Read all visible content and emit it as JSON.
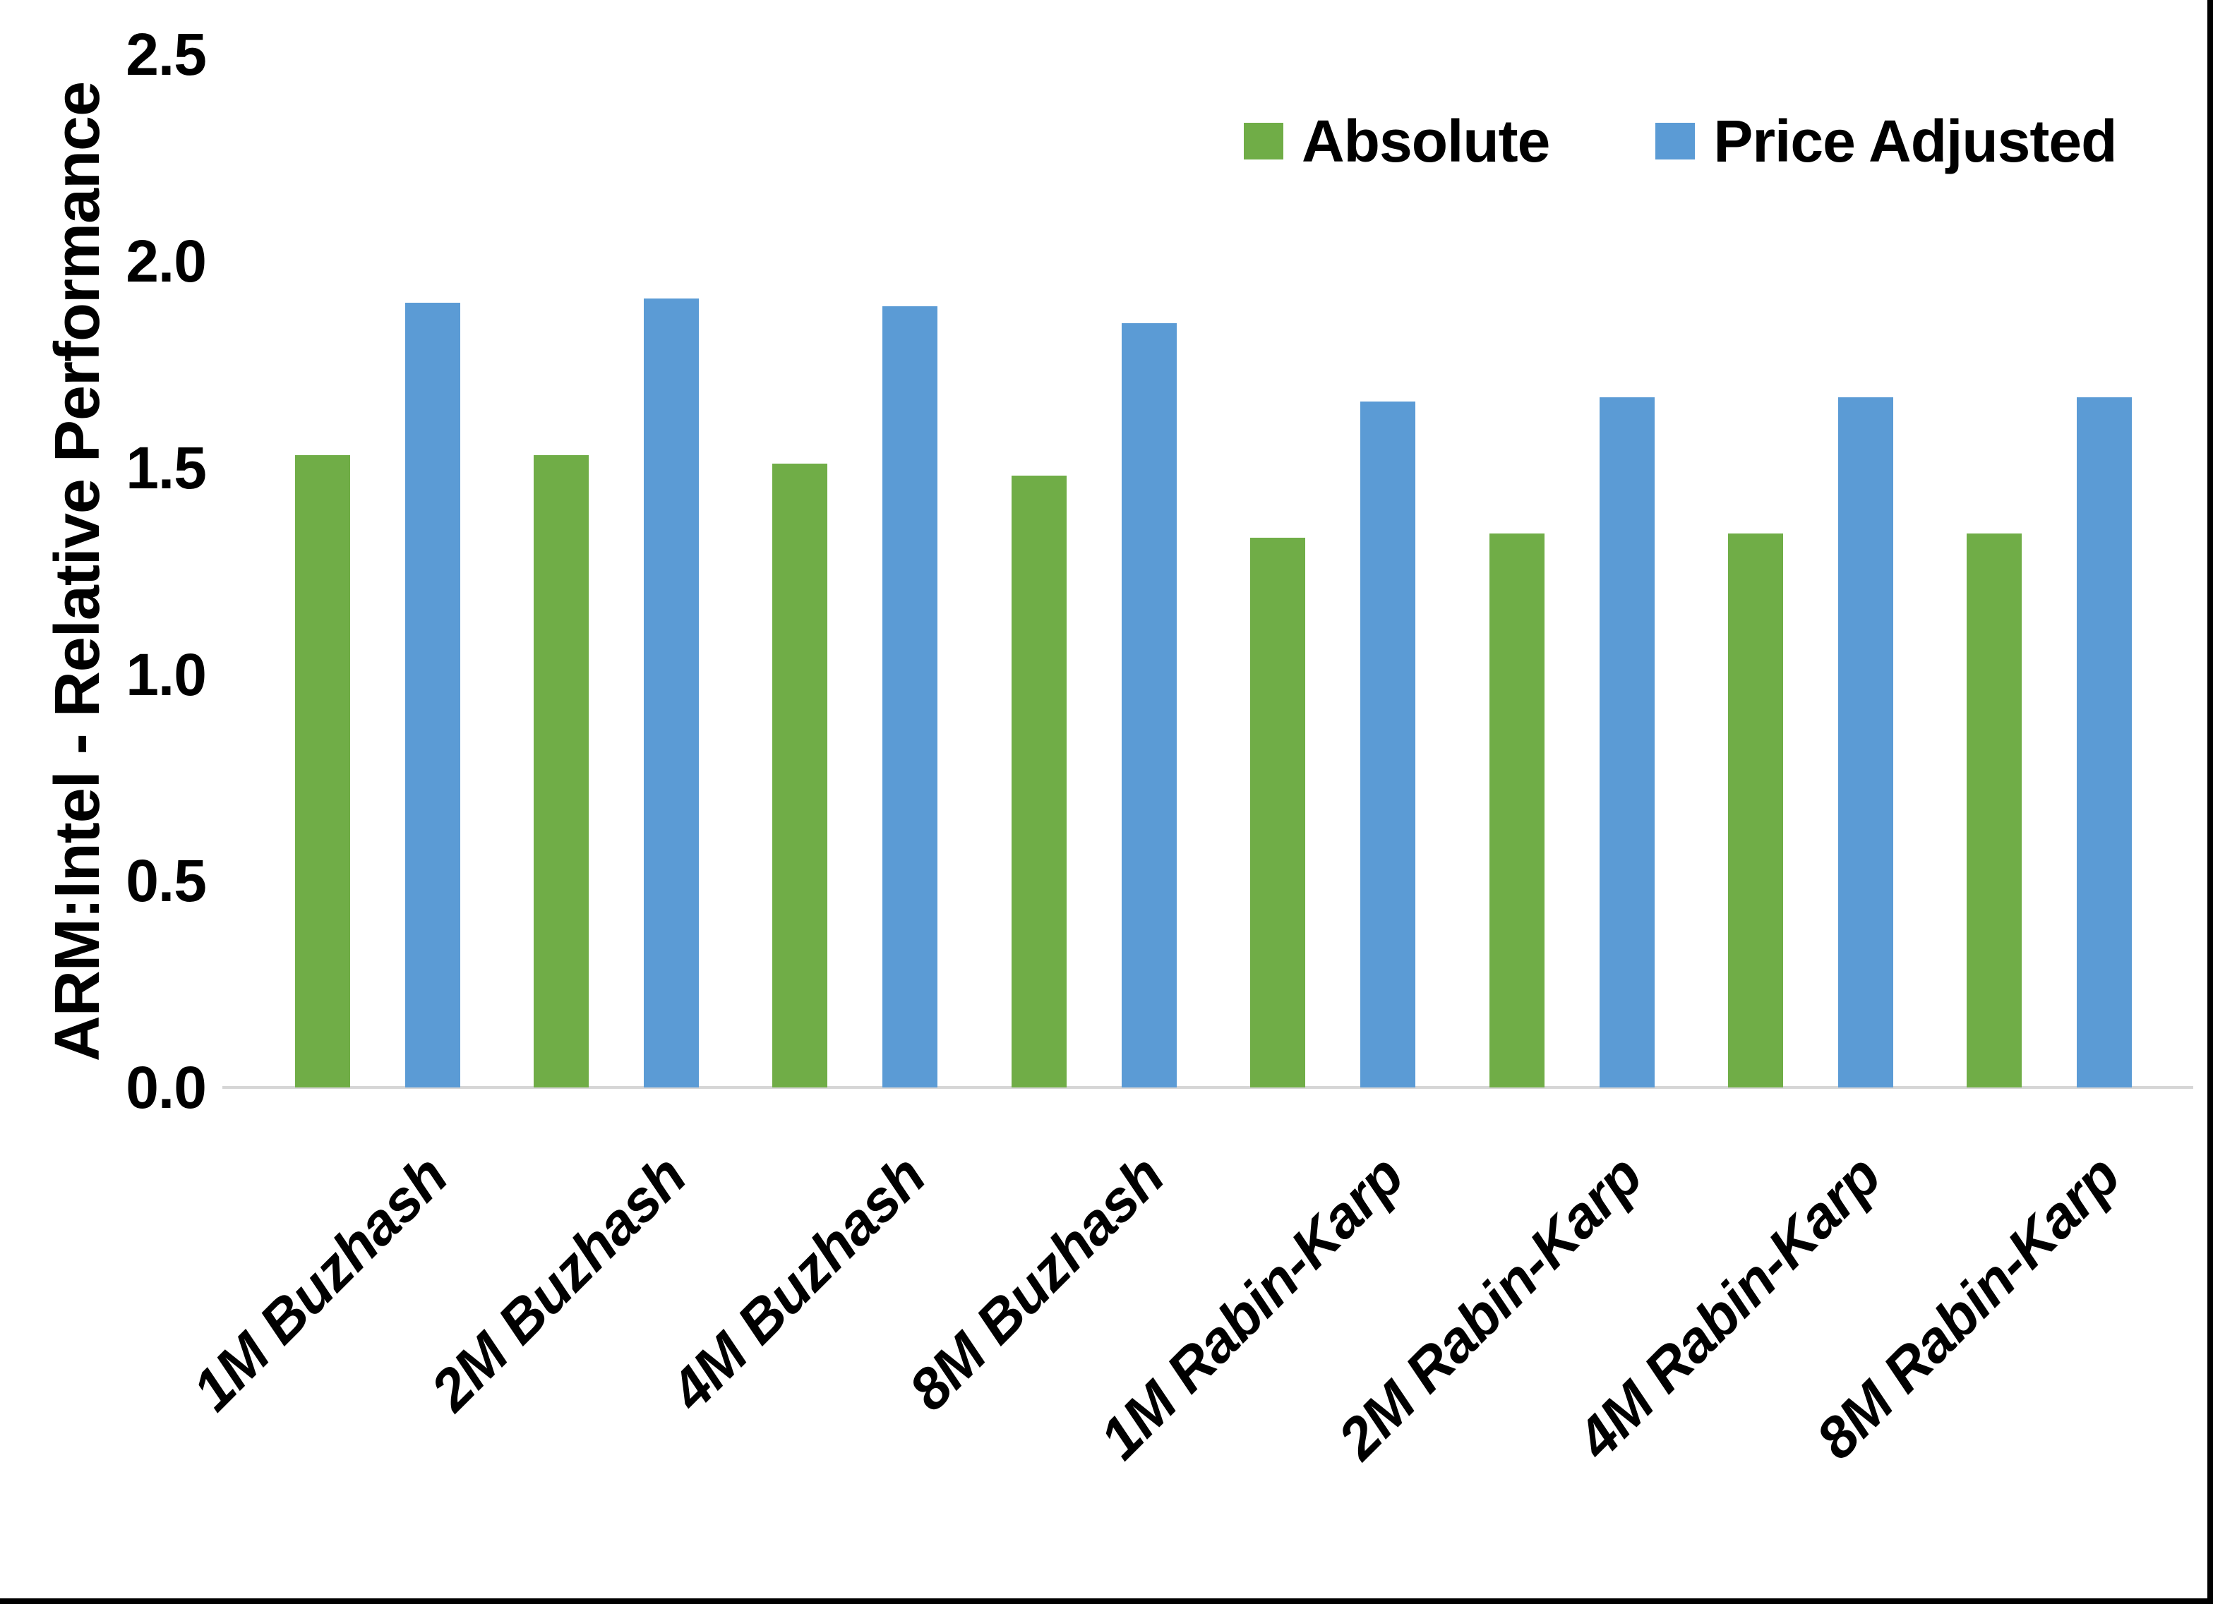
{
  "chart_data": {
    "type": "bar",
    "title": "",
    "ylabel": "ARM:Intel - Relative Performance",
    "xlabel": "",
    "ylim": [
      0.0,
      2.5
    ],
    "ytick_step": 0.5,
    "yticks": [
      "0.0",
      "0.5",
      "1.0",
      "1.5",
      "2.0",
      "2.5"
    ],
    "grid": "off",
    "legend_position": "top-right",
    "axis_line_color": "#d6d6d6",
    "categories": [
      "1M Buzhash",
      "2M Buzhash",
      "4M Buzhash",
      "8M Buzhash",
      "1M Rabin-Karp",
      "2M Rabin-Karp",
      "4M Rabin-Karp",
      "8M Rabin-Karp"
    ],
    "series": [
      {
        "name": "Absolute",
        "color": "#70AD47",
        "values": [
          1.53,
          1.53,
          1.51,
          1.48,
          1.33,
          1.34,
          1.34,
          1.34
        ]
      },
      {
        "name": "Price Adjusted",
        "color": "#5B9BD5",
        "values": [
          1.9,
          1.91,
          1.89,
          1.85,
          1.66,
          1.67,
          1.67,
          1.67
        ]
      }
    ]
  }
}
